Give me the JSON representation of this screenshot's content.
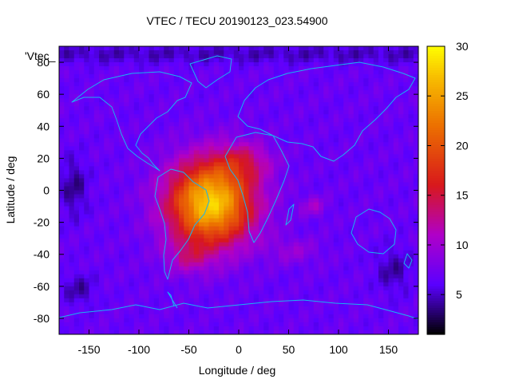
{
  "chart_data": {
    "type": "heatmap",
    "title": "VTEC / TECU 20190123_023.54900",
    "series_label": "'Vtec_",
    "xlabel": "Longitude / deg",
    "ylabel": "Latitude / deg",
    "xlim": [
      -180,
      180
    ],
    "ylim": [
      -90,
      90
    ],
    "x_ticks": [
      -150,
      -100,
      -50,
      0,
      50,
      100,
      150
    ],
    "y_ticks": [
      -80,
      -60,
      -40,
      -20,
      0,
      20,
      40,
      60,
      80
    ],
    "colorbar": {
      "range": [
        1,
        30
      ],
      "ticks": [
        5,
        10,
        15,
        20,
        25,
        30
      ],
      "palette": "black-purple-red-orange-yellow",
      "stops": [
        {
          "value": 1,
          "color": "#000000"
        },
        {
          "value": 6,
          "color": "#5a00ff"
        },
        {
          "value": 11,
          "color": "#b000c8"
        },
        {
          "value": 16,
          "color": "#d8181c"
        },
        {
          "value": 22,
          "color": "#ec7000"
        },
        {
          "value": 27,
          "color": "#f8c000"
        },
        {
          "value": 30,
          "color": "#ffff00"
        }
      ]
    },
    "peak_value_tecu": 28,
    "peak_location": {
      "lon": -25,
      "lat": -10
    },
    "grid": false,
    "overlay": "coastlines",
    "coastline_color": "#1ab4f0"
  }
}
